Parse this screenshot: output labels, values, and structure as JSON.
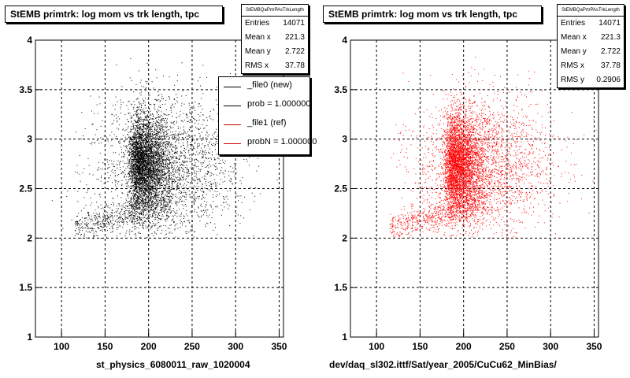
{
  "chart_data": [
    {
      "type": "scatter",
      "title": "StEMB primtrk: log mom vs trk length, tpc",
      "xlabel": "st_physics_6080011_raw_1020004",
      "ylabel": "",
      "xlim": [
        70,
        355
      ],
      "ylim": [
        1,
        4
      ],
      "xticks": [
        100,
        150,
        200,
        250,
        300,
        350
      ],
      "yticks": [
        1,
        1.5,
        2,
        2.5,
        3,
        3.5,
        4
      ],
      "grid": true,
      "marker_color": "#000000",
      "stats": {
        "header": "StEMBQaPrtrPAsTrkLength",
        "rows": [
          {
            "label": "Entries",
            "value": "14071"
          },
          {
            "label": "Mean x",
            "value": "221.3"
          },
          {
            "label": "Mean y",
            "value": "2.722"
          },
          {
            "label": "RMS x",
            "value": "37.78"
          }
        ]
      },
      "legend": {
        "placement": "right",
        "entries": [
          {
            "label": "_file0 (new)",
            "color": "#000000"
          },
          {
            "label": "prob = 1.000000",
            "color": "#000000"
          },
          {
            "label": "_file1 (ref)",
            "color": "#cc0000"
          },
          {
            "label": "probN = 1.000000",
            "color": "#cc0000"
          }
        ]
      },
      "distribution": {
        "entries": 14071,
        "mean_x": 221.3,
        "mean_y": 2.722,
        "rms_x": 37.78,
        "rms_y": 0.2906,
        "dense_core_x": [
          180,
          215
        ],
        "dense_core_y": [
          2.3,
          3.2
        ]
      }
    },
    {
      "type": "scatter",
      "title": "StEMB primtrk: log mom vs trk length, tpc",
      "xlabel": "dev/daq_sl302.ittf/Sat/year_2005/CuCu62_MinBias/",
      "ylabel": "",
      "xlim": [
        70,
        355
      ],
      "ylim": [
        1,
        4
      ],
      "xticks": [
        100,
        150,
        200,
        250,
        300,
        350
      ],
      "yticks": [
        1,
        1.5,
        2,
        2.5,
        3,
        3.5,
        4
      ],
      "grid": true,
      "marker_color": "#ff0000",
      "stats": {
        "header": "StEMBQaPrtrPAsTrkLength",
        "rows": [
          {
            "label": "Entries",
            "value": "14071"
          },
          {
            "label": "Mean x",
            "value": "221.3"
          },
          {
            "label": "Mean y",
            "value": "2.722"
          },
          {
            "label": "RMS x",
            "value": "37.78"
          },
          {
            "label": "RMS y",
            "value": "0.2906"
          }
        ]
      },
      "distribution": {
        "entries": 14071,
        "mean_x": 221.3,
        "mean_y": 2.722,
        "rms_x": 37.78,
        "rms_y": 0.2906,
        "dense_core_x": [
          180,
          215
        ],
        "dense_core_y": [
          2.3,
          3.2
        ]
      }
    }
  ]
}
